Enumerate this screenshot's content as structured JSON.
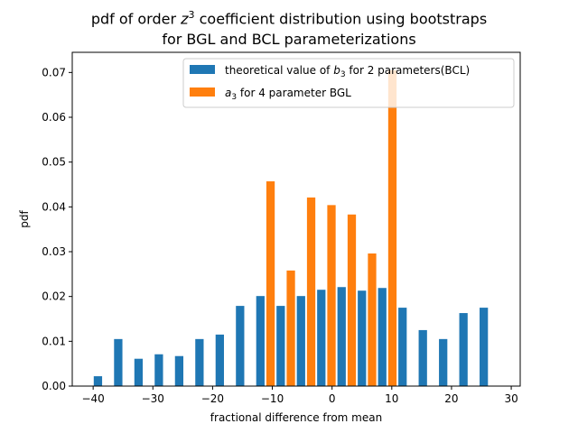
{
  "chart_data": {
    "type": "bar",
    "title_line1_prefix": "pdf of order ",
    "title_line1_var": "z",
    "title_line1_sup": "3",
    "title_line1_suffix": " coefficient distribution using bootstraps",
    "title_line2": "for BGL and BCL parameterizations",
    "xlabel": "fractional difference from mean",
    "ylabel": "pdf",
    "xlim": [
      -43.5,
      31.5
    ],
    "ylim": [
      0,
      0.0745
    ],
    "xticks": [
      -40,
      -30,
      -20,
      -10,
      0,
      10,
      20,
      30
    ],
    "xtick_labels": [
      "−40",
      "−30",
      "−20",
      "−10",
      "0",
      "10",
      "20",
      "30"
    ],
    "yticks": [
      0.0,
      0.01,
      0.02,
      0.03,
      0.04,
      0.05,
      0.06,
      0.07
    ],
    "ytick_labels": [
      "0.00",
      "0.01",
      "0.02",
      "0.03",
      "0.04",
      "0.05",
      "0.06",
      "0.07"
    ],
    "legend_position": "top-right",
    "series": [
      {
        "name_prefix": "theoretical value of ",
        "name_var": "b",
        "name_sub": "3",
        "name_suffix": " for 2 parameters(BCL)",
        "color": "#1f77b4",
        "x": [
          -39.2,
          -35.8,
          -32.4,
          -29.0,
          -25.6,
          -22.2,
          -18.8,
          -15.4,
          -12.0,
          -8.6,
          -5.2,
          -1.8,
          1.6,
          5.0,
          8.4,
          11.8,
          15.2,
          18.6,
          22.0,
          25.4
        ],
        "values": [
          0.0022,
          0.0105,
          0.0061,
          0.0071,
          0.0067,
          0.0105,
          0.0115,
          0.0179,
          0.0201,
          0.0179,
          0.0201,
          0.0215,
          0.0221,
          0.0213,
          0.0219,
          0.0175,
          0.0125,
          0.0105,
          0.0163,
          0.0175
        ]
      },
      {
        "name_var": "a",
        "name_sub": "3",
        "name_suffix": " for 4 parameter BGL",
        "color": "#ff7f0e",
        "x": [
          -10.3,
          -6.9,
          -3.5,
          -0.1,
          3.3,
          6.7,
          10.1
        ],
        "values": [
          0.0457,
          0.0258,
          0.0421,
          0.0404,
          0.0383,
          0.0296,
          0.0705
        ]
      }
    ],
    "bar_width": 1.4
  }
}
